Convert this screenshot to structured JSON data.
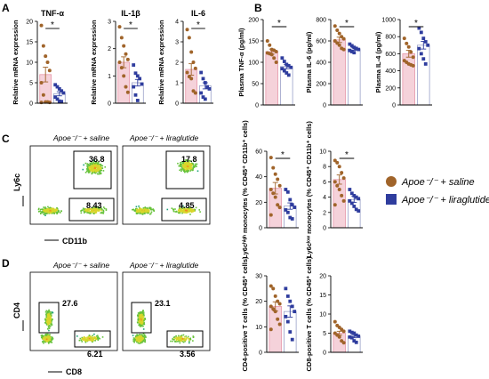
{
  "colors": {
    "saline": "#A0642A",
    "lira": "#2F3D9E",
    "saline_bar": "#F5D2DA",
    "lira_bar": "#FFFFFF"
  },
  "panel_labels": [
    "A",
    "B",
    "C",
    "D"
  ],
  "legend": {
    "saline": "Apoe⁻/⁻ + saline",
    "lira": "Apoe⁻/⁻ + liraglutide"
  },
  "flow": {
    "c_saline_title": "Apoe⁻/⁻ + saline",
    "c_lira_title": "Apoe⁻/⁻ + liraglutide",
    "c_ylabel": "Ly6c",
    "c_xlabel": "CD11b",
    "c_saline_hi": "36.8",
    "c_saline_lo": "8.43",
    "c_lira_hi": "17.8",
    "c_lira_lo": "4.85",
    "d_saline_title": "Apoe⁻/⁻ + saline",
    "d_lira_title": "Apoe⁻/⁻ + liraglutide",
    "d_ylabel": "CD4",
    "d_xlabel": "CD8",
    "d_saline_cd4": "27.6",
    "d_saline_cd8": "6.21",
    "d_lira_cd4": "23.1",
    "d_lira_cd8": "3.56"
  },
  "chart_data": [
    {
      "id": "A1",
      "type": "bar",
      "title": "TNF-α",
      "ylabel": "Relative mRNA expression",
      "ylim": [
        0,
        20
      ],
      "yticks": [
        "0",
        "5",
        "10",
        "15",
        "20"
      ],
      "sig": "*",
      "series": [
        {
          "name": "Apoe⁻/⁻ + saline",
          "mean": 7,
          "sem": 1.8,
          "points": [
            19,
            14,
            11.5,
            10,
            8,
            5,
            2,
            0.3,
            0.3,
            0.2,
            0.2
          ]
        },
        {
          "name": "Apoe⁻/⁻ + liraglutide",
          "mean": 2.3,
          "sem": 0.5,
          "points": [
            4.5,
            4,
            3.5,
            3,
            2.5,
            1.5,
            1,
            0.5,
            0.4
          ]
        }
      ]
    },
    {
      "id": "A2",
      "type": "bar",
      "title": "IL-1β",
      "ylabel": "Relative mRNA expression",
      "ylim": [
        0,
        3
      ],
      "yticks": [
        "0",
        "1",
        "2",
        "3"
      ],
      "sig": "*",
      "series": [
        {
          "name": "Apoe⁻/⁻ + saline",
          "mean": 1.5,
          "sem": 0.2,
          "points": [
            2.8,
            2.4,
            2.1,
            1.8,
            1.6,
            1.5,
            1.3,
            1.0,
            0.6,
            0.4
          ]
        },
        {
          "name": "Apoe⁻/⁻ + liraglutide",
          "mean": 0.75,
          "sem": 0.12,
          "points": [
            1.4,
            1.1,
            1.0,
            0.9,
            0.7,
            0.6,
            0.3,
            0.1
          ]
        }
      ]
    },
    {
      "id": "A3",
      "type": "bar",
      "title": "IL-6",
      "ylabel": "Relative mRNA expression",
      "ylim": [
        0,
        4
      ],
      "yticks": [
        "0",
        "1",
        "2",
        "3",
        "4"
      ],
      "sig": "*",
      "series": [
        {
          "name": "Apoe⁻/⁻ + saline",
          "mean": 1.65,
          "sem": 0.28,
          "points": [
            3.6,
            3.2,
            2.5,
            2.0,
            1.7,
            1.5,
            1.3,
            1.2,
            0.6,
            0.5
          ]
        },
        {
          "name": "Apoe⁻/⁻ + liraglutide",
          "mean": 0.85,
          "sem": 0.15,
          "points": [
            1.5,
            1.2,
            1.0,
            0.8,
            0.7,
            0.5,
            0.3,
            0.2
          ]
        }
      ]
    },
    {
      "id": "B1",
      "type": "bar",
      "title": "",
      "ylabel": "Plasma TNF-α (pg/ml)",
      "ylim": [
        0,
        200
      ],
      "yticks": [
        "0",
        "50",
        "100",
        "150",
        "200"
      ],
      "sig": "*",
      "series": [
        {
          "name": "Apoe⁻/⁻ + saline",
          "mean": 125,
          "sem": 6,
          "points": [
            150,
            140,
            130,
            128,
            125,
            122,
            120,
            118,
            110,
            100
          ]
        },
        {
          "name": "Apoe⁻/⁻ + liraglutide",
          "mean": 90,
          "sem": 5,
          "points": [
            110,
            102,
            95,
            92,
            88,
            85,
            80,
            75,
            70
          ]
        }
      ]
    },
    {
      "id": "B2",
      "type": "bar",
      "title": "",
      "ylabel": "Plasma IL-6 (pg/ml)",
      "ylim": [
        0,
        800
      ],
      "yticks": [
        "0",
        "200",
        "400",
        "600",
        "800"
      ],
      "sig": "*",
      "series": [
        {
          "name": "Apoe⁻/⁻ + saline",
          "mean": 610,
          "sem": 25,
          "points": [
            740,
            700,
            670,
            640,
            620,
            600,
            580,
            560,
            530,
            520
          ]
        },
        {
          "name": "Apoe⁻/⁻ + liraglutide",
          "mean": 525,
          "sem": 12,
          "points": [
            570,
            555,
            540,
            530,
            520,
            510,
            500,
            490
          ]
        }
      ]
    },
    {
      "id": "B3",
      "type": "bar",
      "title": "",
      "ylabel": "Plasma IL-4 (pg/ml)",
      "ylim": [
        0,
        1000
      ],
      "yticks": [
        "0",
        "200",
        "400",
        "600",
        "800",
        "1000"
      ],
      "sig": "*",
      "series": [
        {
          "name": "Apoe⁻/⁻ + saline",
          "mean": 600,
          "sem": 40,
          "points": [
            780,
            720,
            680,
            620,
            560,
            520,
            500,
            480,
            470,
            460
          ]
        },
        {
          "name": "Apoe⁻/⁻ + liraglutide",
          "mean": 700,
          "sem": 45,
          "points": [
            900,
            850,
            780,
            740,
            700,
            660,
            600,
            540,
            480
          ]
        }
      ]
    },
    {
      "id": "C1",
      "type": "bar",
      "title": "",
      "ylabel": "Ly6cʰⁱᵍʰ monocytes (% CD45⁺ CD11b⁺ cells)",
      "ylim": [
        0,
        60
      ],
      "yticks": [
        "0",
        "20",
        "40",
        "60"
      ],
      "sig": "*",
      "series": [
        {
          "name": "Apoe⁻/⁻ + saline",
          "mean": 31,
          "sem": 4.5,
          "points": [
            55,
            47,
            42,
            38,
            33,
            30,
            27,
            24,
            18,
            16,
            10
          ]
        },
        {
          "name": "Apoe⁻/⁻ + liraglutide",
          "mean": 17,
          "sem": 2.5,
          "points": [
            30,
            28,
            22,
            18,
            16,
            14,
            12,
            8,
            7
          ]
        }
      ]
    },
    {
      "id": "C2",
      "type": "bar",
      "title": "",
      "ylabel": "Ly6cˡᵒʷ monocytes (% CD45⁺ CD11b⁺ cells)",
      "ylim": [
        0,
        10
      ],
      "yticks": [
        "0",
        "2",
        "4",
        "6",
        "8",
        "10"
      ],
      "sig": "*",
      "series": [
        {
          "name": "Apoe⁻/⁻ + saline",
          "mean": 6.3,
          "sem": 0.6,
          "points": [
            8.8,
            8.5,
            8.0,
            7.2,
            6.5,
            6.0,
            5.5,
            5.0,
            4.2,
            3.5,
            3.0
          ]
        },
        {
          "name": "Apoe⁻/⁻ + liraglutide",
          "mean": 3.7,
          "sem": 0.4,
          "points": [
            5.0,
            4.5,
            4.2,
            4.0,
            3.8,
            3.5,
            3.2,
            2.8,
            2.4,
            2.2
          ]
        }
      ]
    },
    {
      "id": "D1",
      "type": "bar",
      "title": "",
      "ylabel": "CD4-positive T cells (% CD45⁺ cells)",
      "ylim": [
        0,
        30
      ],
      "yticks": [
        "0",
        "10",
        "20",
        "30"
      ],
      "sig": "",
      "series": [
        {
          "name": "Apoe⁻/⁻ + saline",
          "mean": 18,
          "sem": 1.8,
          "points": [
            26,
            25,
            22,
            20,
            19,
            18,
            17,
            16,
            13,
            11,
            9
          ]
        },
        {
          "name": "Apoe⁻/⁻ + liraglutide",
          "mean": 16,
          "sem": 2.2,
          "points": [
            25,
            22,
            20,
            18,
            16,
            14,
            12,
            8,
            5
          ]
        }
      ]
    },
    {
      "id": "D2",
      "type": "bar",
      "title": "",
      "ylabel": "CD8-positive T cells (% CD45⁺ cells)",
      "ylim": [
        0,
        20
      ],
      "yticks": [
        "0",
        "5",
        "10",
        "15",
        "20"
      ],
      "sig": "",
      "series": [
        {
          "name": "Apoe⁻/⁻ + saline",
          "mean": 5,
          "sem": 0.5,
          "points": [
            8,
            7,
            6.5,
            6,
            5.5,
            5,
            4.5,
            4,
            3,
            2.5
          ]
        },
        {
          "name": "Apoe⁻/⁻ + liraglutide",
          "mean": 4.2,
          "sem": 0.4,
          "points": [
            5.5,
            5.2,
            5,
            4.5,
            4.2,
            4,
            3.8,
            3,
            2.6
          ]
        }
      ]
    }
  ]
}
